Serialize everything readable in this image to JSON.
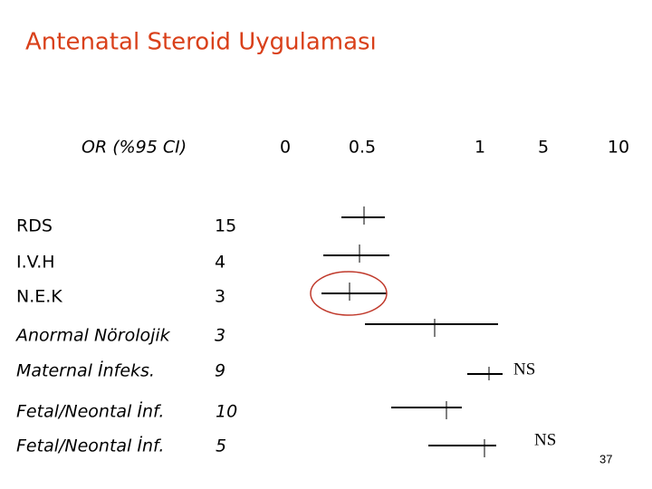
{
  "title": "Antenatal Steroid Uygulaması",
  "header": {
    "label": "OR (%95 CI)",
    "axis": [
      "0",
      "0.5",
      "1",
      "5",
      "10"
    ]
  },
  "rows": [
    {
      "label": "RDS",
      "value": "15"
    },
    {
      "label": "I.V.H",
      "value": "4"
    },
    {
      "label": "N.E.K",
      "value": "3"
    },
    {
      "label": "Anormal Nörolojik",
      "value": "3"
    },
    {
      "label": "Maternal İnfeks.",
      "value": "9"
    },
    {
      "label": "Fetal/Neontal İnf.",
      "value": "10"
    },
    {
      "label": "Fetal/Neontal İnf.",
      "value": "5"
    }
  ],
  "annotations": [
    "NS",
    "NS"
  ],
  "page_number": "37"
}
